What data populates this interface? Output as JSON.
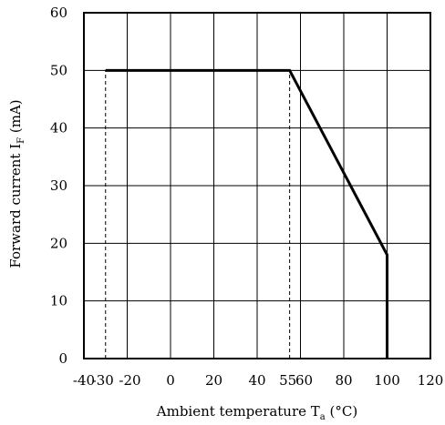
{
  "chart_data": {
    "type": "line",
    "xlabel": "Ambient temperature T",
    "xlabel_sub": "a",
    "xlabel_unit": " (°C)",
    "ylabel": "Forward current I",
    "ylabel_sub": "F",
    "ylabel_unit": " (mA)",
    "xlim": [
      -40,
      120
    ],
    "ylim": [
      0,
      60
    ],
    "x_ticks": [
      -40,
      -20,
      0,
      20,
      40,
      60,
      80,
      100,
      120
    ],
    "x_tick_labels": [
      "-40",
      "-30",
      "-20",
      "0",
      "20",
      "40",
      "55",
      "60",
      "80",
      "100",
      "120"
    ],
    "x_tick_label_values": [
      -40,
      -30,
      -20,
      0,
      20,
      40,
      55,
      60,
      80,
      100,
      120
    ],
    "y_ticks": [
      0,
      10,
      20,
      30,
      40,
      50,
      60
    ],
    "y_tick_labels": [
      "0",
      "10",
      "20",
      "30",
      "40",
      "50",
      "60"
    ],
    "grid": true,
    "series": [
      {
        "x": [
          -30,
          55,
          100,
          100
        ],
        "y": [
          50,
          50,
          18,
          0
        ],
        "style": "solid"
      }
    ],
    "reference_lines": [
      {
        "x": -30,
        "y_from": 0,
        "y_to": 50,
        "style": "dashed"
      },
      {
        "x": 55,
        "y_from": 0,
        "y_to": 50,
        "style": "dashed"
      }
    ],
    "colors": {
      "line": "#000000",
      "grid": "#000000"
    }
  }
}
